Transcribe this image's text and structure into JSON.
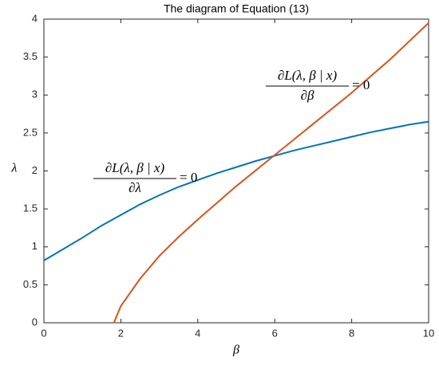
{
  "chart_data": {
    "type": "line",
    "title": "The diagram of Equation (13)",
    "xlabel": "β",
    "ylabel": "λ",
    "xlim": [
      0,
      10
    ],
    "xticks": [
      0,
      2,
      4,
      6,
      8,
      10
    ],
    "ylim": [
      0,
      4
    ],
    "yticks": [
      0,
      0.5,
      1,
      1.5,
      2,
      2.5,
      3,
      3.5,
      4
    ],
    "grid": false,
    "series": [
      {
        "color": "#0072bd",
        "x": [
          0,
          0.5,
          1,
          1.5,
          2,
          2.5,
          3,
          3.5,
          4,
          4.5,
          5,
          5.5,
          6,
          6.5,
          7,
          7.5,
          8,
          8.5,
          9,
          9.5,
          10
        ],
        "values": [
          0.82,
          0.97,
          1.12,
          1.28,
          1.42,
          1.56,
          1.68,
          1.79,
          1.88,
          1.97,
          2.05,
          2.13,
          2.2,
          2.27,
          2.33,
          2.39,
          2.45,
          2.51,
          2.56,
          2.61,
          2.65
        ]
      },
      {
        "color": "#d95319",
        "x": [
          1.82,
          2,
          2.5,
          3,
          3.5,
          4,
          5,
          6,
          7,
          8,
          9,
          10
        ],
        "values": [
          0,
          0.22,
          0.58,
          0.88,
          1.13,
          1.36,
          1.8,
          2.21,
          2.62,
          3.03,
          3.47,
          3.95
        ]
      }
    ],
    "annotations": [
      {
        "numerator": "∂L(λ, β | x)",
        "denominator": "∂λ",
        "rhs": "= 0"
      },
      {
        "numerator": "∂L(λ, β | x)",
        "denominator": "∂β",
        "rhs": "= 0"
      }
    ]
  }
}
